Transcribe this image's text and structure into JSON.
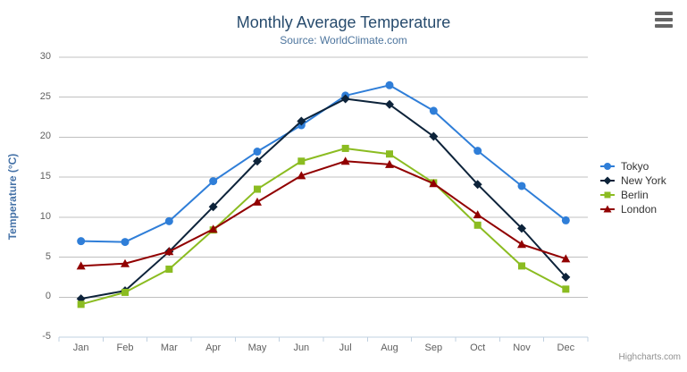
{
  "credits": {
    "text": "Highcharts.com"
  },
  "chart_data": {
    "type": "line",
    "title": "Monthly Average Temperature",
    "subtitle": "Source: WorldClimate.com",
    "xlabel": "",
    "ylabel": "Temperature (°C)",
    "ylim": [
      -5,
      30
    ],
    "yticks": [
      30,
      25,
      20,
      15,
      10,
      5,
      0,
      -5
    ],
    "grid": true,
    "legend_position": "right",
    "categories": [
      "Jan",
      "Feb",
      "Mar",
      "Apr",
      "May",
      "Jun",
      "Jul",
      "Aug",
      "Sep",
      "Oct",
      "Nov",
      "Dec"
    ],
    "series": [
      {
        "name": "Tokyo",
        "color": "#2f7ed8",
        "marker": "circle",
        "values": [
          7.0,
          6.9,
          9.5,
          14.5,
          18.2,
          21.5,
          25.2,
          26.5,
          23.3,
          18.3,
          13.9,
          9.6
        ]
      },
      {
        "name": "New York",
        "color": "#0d233a",
        "marker": "diamond",
        "values": [
          -0.2,
          0.8,
          5.7,
          11.3,
          17.0,
          22.0,
          24.8,
          24.1,
          20.1,
          14.1,
          8.6,
          2.5
        ]
      },
      {
        "name": "Berlin",
        "color": "#8bbc21",
        "marker": "square",
        "values": [
          -0.9,
          0.6,
          3.5,
          8.4,
          13.5,
          17.0,
          18.6,
          17.9,
          14.3,
          9.0,
          3.9,
          1.0
        ]
      },
      {
        "name": "London",
        "color": "#910000",
        "marker": "triangle",
        "values": [
          3.9,
          4.2,
          5.7,
          8.5,
          11.9,
          15.2,
          17.0,
          16.6,
          14.2,
          10.3,
          6.6,
          4.8
        ]
      }
    ]
  },
  "theme": {
    "title_color": "#274b6d",
    "subtitle_color": "#4d759e",
    "y_axis_title_color": "#4572a7",
    "axis_label_color": "#606060",
    "grid_color": "#c0c0c0",
    "axis_line_color": "#c0d0e0",
    "legend_text_color": "#333333",
    "credits_color": "#909090",
    "menu_icon_color": "#666666"
  }
}
